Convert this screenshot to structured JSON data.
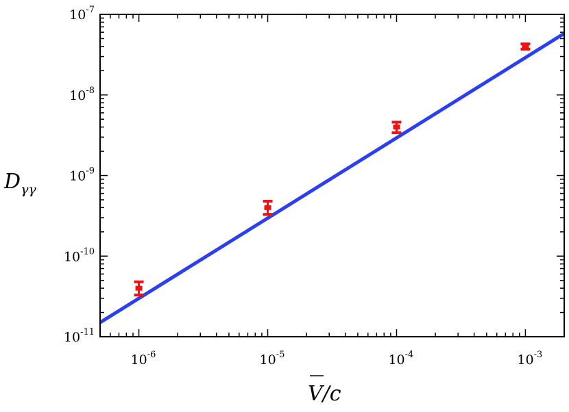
{
  "chart_data": {
    "type": "scatter",
    "xscale": "log",
    "yscale": "log",
    "xlim": [
      5e-07,
      0.002
    ],
    "ylim": [
      1e-11,
      1e-07
    ],
    "xlabel": "V/c",
    "xlabel_parts": {
      "symbol": "V",
      "rest": "/c"
    },
    "ylabel": "Dγγ",
    "ylabel_parts": {
      "base": "D",
      "sub": "γγ"
    },
    "x_ticks": [
      {
        "value": 1e-06,
        "base": "10",
        "exp": "-6"
      },
      {
        "value": 1e-05,
        "base": "10",
        "exp": "-5"
      },
      {
        "value": 0.0001,
        "base": "10",
        "exp": "-4"
      },
      {
        "value": 0.001,
        "base": "10",
        "exp": "-3"
      }
    ],
    "y_ticks": [
      {
        "value": 1e-11,
        "base": "10",
        "exp": "-11"
      },
      {
        "value": 1e-10,
        "base": "10",
        "exp": "-10"
      },
      {
        "value": 1e-09,
        "base": "10",
        "exp": "-9"
      },
      {
        "value": 1e-08,
        "base": "10",
        "exp": "-8"
      },
      {
        "value": 1e-07,
        "base": "10",
        "exp": "-7"
      }
    ],
    "series": [
      {
        "kind": "points",
        "color": "#ee1111",
        "points": [
          {
            "x": 1e-06,
            "y": 4e-11,
            "ylow": 3.3e-11,
            "yhigh": 4.8e-11
          },
          {
            "x": 1e-05,
            "y": 4e-10,
            "ylow": 3.3e-10,
            "yhigh": 4.8e-10
          },
          {
            "x": 0.0001,
            "y": 4e-09,
            "ylow": 3.4e-09,
            "yhigh": 4.6e-09
          },
          {
            "x": 0.001,
            "y": 4e-08,
            "ylow": 3.7e-08,
            "yhigh": 4.3e-08
          }
        ]
      },
      {
        "kind": "line",
        "color": "#2b3ff0",
        "points": [
          {
            "x": 5e-07,
            "y": 1.5e-11
          },
          {
            "x": 0.002,
            "y": 5.8e-08
          }
        ]
      }
    ],
    "grid": false,
    "legend": "none"
  }
}
